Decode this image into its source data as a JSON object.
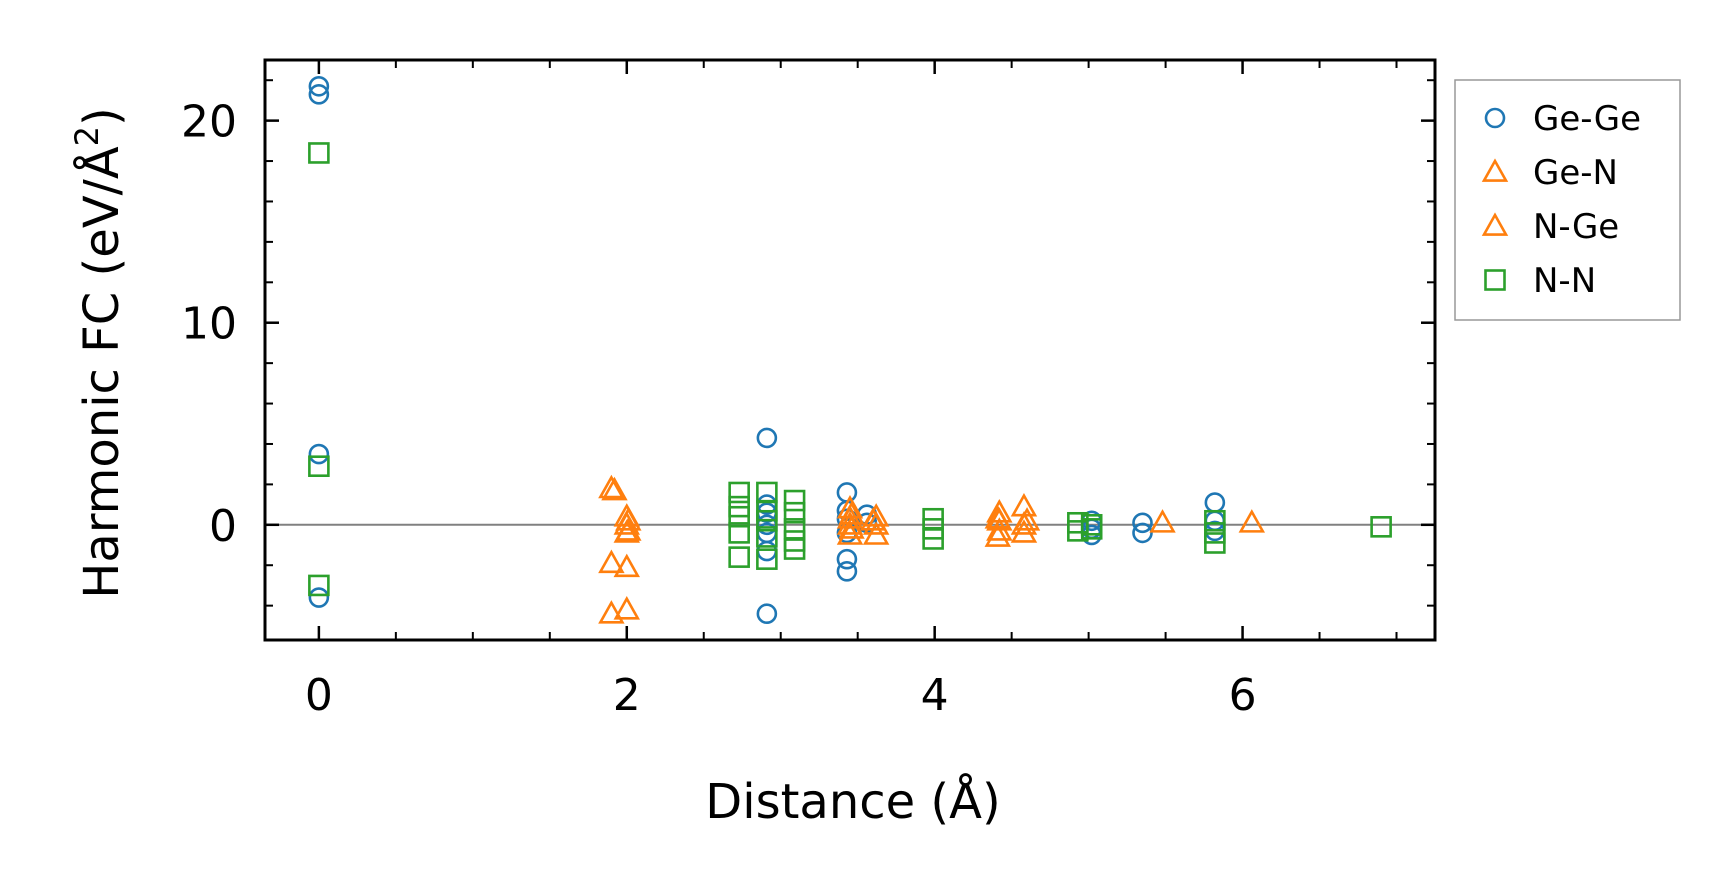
{
  "chart_data": {
    "type": "scatter",
    "xlabel": "Distance (Å)",
    "ylabel_main": "Harmonic FC (eV/Å",
    "ylabel_sup": "2",
    "ylabel_close": ")",
    "xlim": [
      -0.35,
      7.25
    ],
    "ylim": [
      -5.7,
      23.0
    ],
    "xticks": [
      0,
      2,
      4,
      6
    ],
    "xtick_labels": [
      "0",
      "2",
      "4",
      "6"
    ],
    "yticks": [
      0,
      10,
      20
    ],
    "ytick_labels": [
      "0",
      "10",
      "20"
    ],
    "x_minor_step": 0.5,
    "y_minor_step": 2,
    "zero_line": true,
    "grid": false,
    "legend_position": "outside-right",
    "series": [
      {
        "name": "Ge-Ge",
        "marker": "circle",
        "color": "#1f77b4",
        "points": [
          [
            0,
            21.7
          ],
          [
            0,
            21.3
          ],
          [
            0,
            3.5
          ],
          [
            0,
            -3.6
          ],
          [
            2.91,
            4.3
          ],
          [
            2.91,
            1.0
          ],
          [
            2.91,
            0.6
          ],
          [
            2.91,
            0.0
          ],
          [
            2.91,
            -0.4
          ],
          [
            2.91,
            -1.3
          ],
          [
            2.91,
            -4.4
          ],
          [
            3.43,
            1.6
          ],
          [
            3.43,
            0.7
          ],
          [
            3.43,
            0.3
          ],
          [
            3.43,
            -0.4
          ],
          [
            3.43,
            -1.7
          ],
          [
            3.43,
            -2.3
          ],
          [
            3.56,
            0.5
          ],
          [
            3.56,
            0.1
          ],
          [
            5.02,
            0.2
          ],
          [
            5.02,
            -0.2
          ],
          [
            5.02,
            -0.5
          ],
          [
            5.35,
            0.1
          ],
          [
            5.35,
            -0.4
          ],
          [
            5.82,
            1.1
          ],
          [
            5.82,
            0.2
          ],
          [
            5.82,
            -0.3
          ]
        ]
      },
      {
        "name": "Ge-N",
        "marker": "triangle",
        "color": "#ff7f0e",
        "points": [
          [
            1.9,
            1.8
          ],
          [
            1.9,
            -1.9
          ],
          [
            1.9,
            -4.4
          ],
          [
            2.0,
            0.4
          ],
          [
            2.0,
            0.0
          ],
          [
            2.0,
            -0.4
          ],
          [
            2.0,
            -2.1
          ],
          [
            2.0,
            -4.2
          ],
          [
            3.45,
            0.8
          ],
          [
            3.45,
            0.3
          ],
          [
            3.45,
            0.0
          ],
          [
            3.45,
            -0.5
          ],
          [
            3.62,
            0.4
          ],
          [
            3.62,
            0.0
          ],
          [
            3.62,
            -0.5
          ],
          [
            4.42,
            0.6
          ],
          [
            4.42,
            0.2
          ],
          [
            4.42,
            -0.3
          ],
          [
            4.58,
            0.9
          ],
          [
            4.58,
            0.0
          ],
          [
            4.58,
            -0.4
          ],
          [
            5.48,
            0.1
          ],
          [
            6.06,
            0.1
          ]
        ]
      },
      {
        "name": "N-Ge",
        "marker": "triangle",
        "color": "#ff7f0e",
        "points": [
          [
            1.92,
            1.7
          ],
          [
            2.01,
            0.2
          ],
          [
            2.01,
            -0.3
          ],
          [
            3.46,
            0.5
          ],
          [
            3.46,
            -0.2
          ],
          [
            3.6,
            0.2
          ],
          [
            4.41,
            0.3
          ],
          [
            4.41,
            -0.6
          ],
          [
            4.6,
            0.2
          ]
        ]
      },
      {
        "name": "N-N",
        "marker": "square",
        "color": "#2ca02c",
        "points": [
          [
            0,
            18.4
          ],
          [
            0,
            2.9
          ],
          [
            0,
            -3.0
          ],
          [
            2.73,
            1.6
          ],
          [
            2.73,
            0.9
          ],
          [
            2.73,
            0.4
          ],
          [
            2.73,
            -0.4
          ],
          [
            2.73,
            -1.6
          ],
          [
            2.91,
            1.6
          ],
          [
            2.91,
            0.7
          ],
          [
            2.91,
            0.2
          ],
          [
            2.91,
            -0.6
          ],
          [
            2.91,
            -1.7
          ],
          [
            3.09,
            1.2
          ],
          [
            3.09,
            0.6
          ],
          [
            3.09,
            -0.2
          ],
          [
            3.09,
            -0.8
          ],
          [
            3.09,
            -1.2
          ],
          [
            3.99,
            0.3
          ],
          [
            3.99,
            -0.2
          ],
          [
            3.99,
            -0.7
          ],
          [
            4.93,
            0.1
          ],
          [
            4.93,
            -0.3
          ],
          [
            5.02,
            0.0
          ],
          [
            5.02,
            -0.2
          ],
          [
            5.82,
            0.2
          ],
          [
            5.82,
            -0.4
          ],
          [
            5.82,
            -0.9
          ],
          [
            6.9,
            -0.1
          ]
        ]
      }
    ]
  }
}
